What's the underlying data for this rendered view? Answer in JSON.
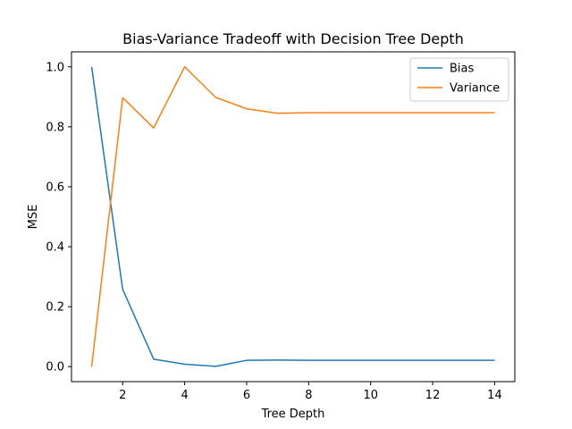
{
  "chart_data": {
    "type": "line",
    "title": "Bias-Variance Tradeoff with Decision Tree Depth",
    "xlabel": "Tree Depth",
    "ylabel": "MSE",
    "x": [
      1,
      2,
      3,
      4,
      5,
      6,
      7,
      8,
      9,
      10,
      11,
      12,
      13,
      14
    ],
    "xlim": [
      0.35,
      14.65
    ],
    "ylim": [
      -0.05,
      1.05
    ],
    "xticks": [
      2,
      4,
      6,
      8,
      10,
      12,
      14
    ],
    "yticks": [
      0.0,
      0.2,
      0.4,
      0.6,
      0.8,
      1.0
    ],
    "ytick_labels": [
      "0.0",
      "0.2",
      "0.4",
      "0.6",
      "0.8",
      "1.0"
    ],
    "grid": false,
    "legend_position": "top-right",
    "series": [
      {
        "name": "Bias",
        "color": "#1f77b4",
        "values": [
          1.0,
          0.258,
          0.025,
          0.008,
          0.001,
          0.021,
          0.022,
          0.021,
          0.021,
          0.021,
          0.021,
          0.021,
          0.021,
          0.021
        ]
      },
      {
        "name": "Variance",
        "color": "#ff7f0e",
        "values": [
          0.0,
          0.897,
          0.796,
          1.0,
          0.898,
          0.86,
          0.845,
          0.847,
          0.847,
          0.847,
          0.847,
          0.847,
          0.847,
          0.847
        ]
      }
    ]
  }
}
